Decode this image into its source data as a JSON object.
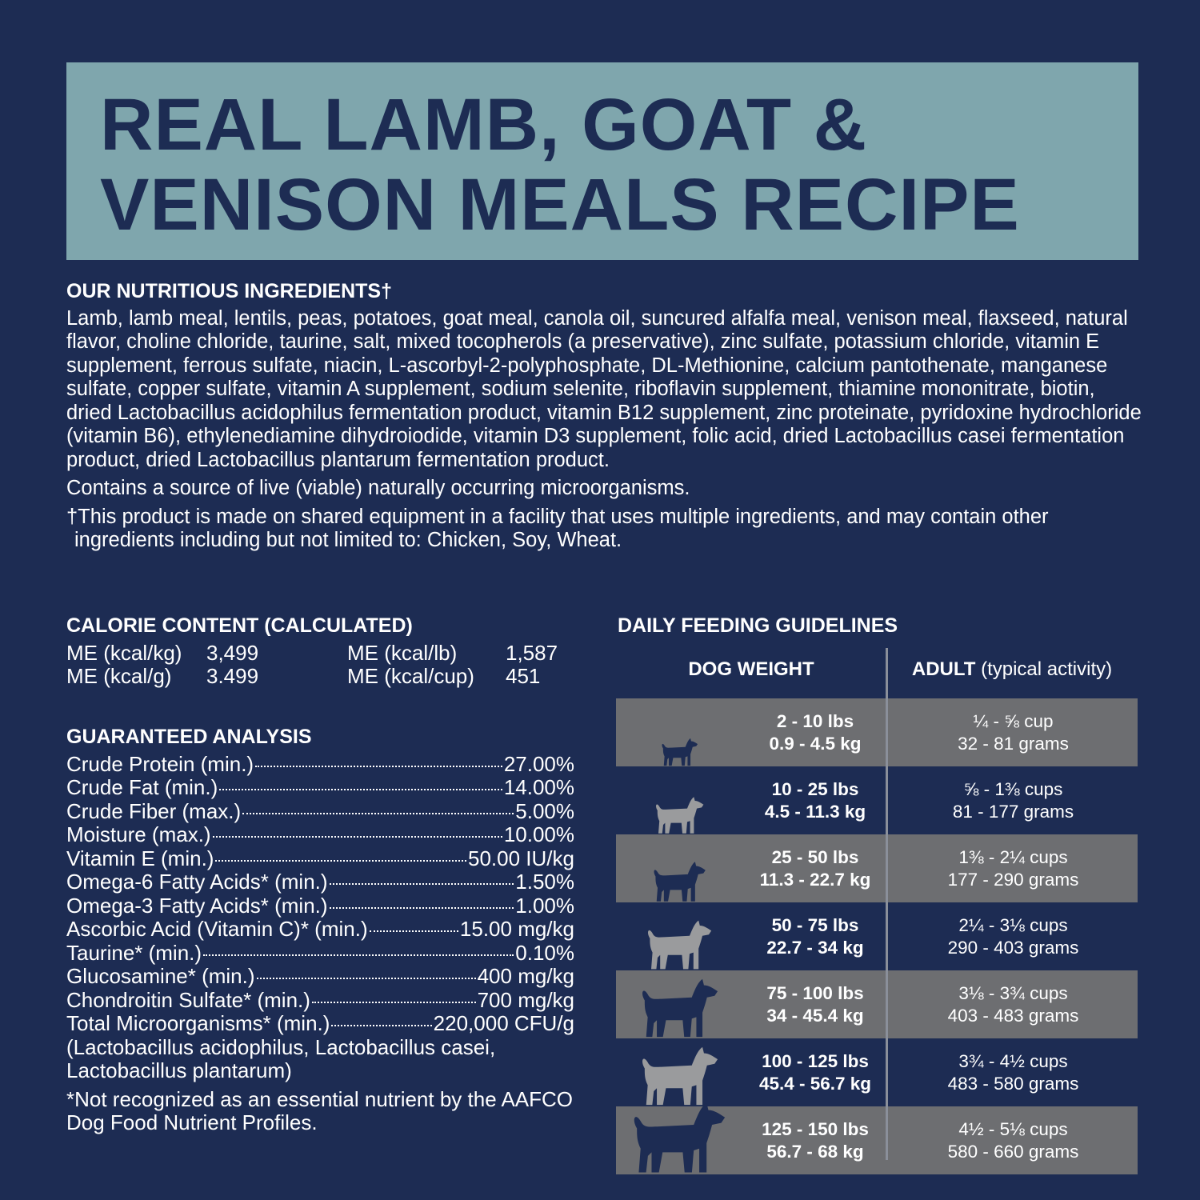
{
  "title": {
    "line1": "REAL LAMB, GOAT &",
    "line2": "VENISON MEALS RECIPE"
  },
  "colors": {
    "background": "#1d2c53",
    "title_band": "#7fa6ad",
    "row_gray": "#6d6e71"
  },
  "ingredients": {
    "heading": "OUR NUTRITIOUS INGREDIENTS†",
    "text": "Lamb, lamb meal, lentils, peas, potatoes, goat meal, canola oil, suncured alfalfa meal, venison meal, flaxseed, natural flavor, choline chloride, taurine, salt, mixed tocopherols (a preservative), zinc sulfate, potassium chloride, vitamin E supplement, ferrous sulfate, niacin, L-ascorbyl-2-polyphosphate, DL-Methionine, calcium pantothenate, manganese sulfate, copper sulfate, vitamin A supplement, sodium selenite, riboflavin supplement, thiamine mononitrate, biotin, dried Lactobacillus acidophilus fermentation product, vitamin B12 supplement, zinc proteinate, pyridoxine hydrochloride (vitamin B6), ethylenediamine dihydroiodide, vitamin D3 supplement, folic acid, dried Lactobacillus casei fermentation product, dried Lactobacillus plantarum fermentation product.",
    "probiotic_note": "Contains a source of live (viable) naturally occurring microorganisms.",
    "allergen_note": "†This product is made on shared equipment in a facility that uses multiple ingredients, and may contain other ingredients including but not limited to: Chicken, Soy, Wheat."
  },
  "calorie": {
    "heading": "CALORIE CONTENT (CALCULATED)",
    "items": [
      {
        "label": "ME (kcal/kg)",
        "value": "3,499"
      },
      {
        "label": "ME (kcal/lb)",
        "value": "1,587"
      },
      {
        "label": "ME (kcal/g)",
        "value": "3.499"
      },
      {
        "label": "ME (kcal/cup)",
        "value": "451"
      }
    ]
  },
  "analysis": {
    "heading": "GUARANTEED ANALYSIS",
    "rows": [
      {
        "label": "Crude Protein (min.)",
        "value": "27.00%"
      },
      {
        "label": "Crude Fat (min.)",
        "value": "14.00%"
      },
      {
        "label": "Crude Fiber (max.)",
        "value": "5.00%"
      },
      {
        "label": "Moisture (max.)",
        "value": "10.00%"
      },
      {
        "label": "Vitamin E (min.)",
        "value": "50.00 IU/kg"
      },
      {
        "label": "Omega-6 Fatty Acids* (min.)",
        "value": "1.50%"
      },
      {
        "label": "Omega-3 Fatty Acids* (min.)",
        "value": "1.00%"
      },
      {
        "label": "Ascorbic Acid (Vitamin C)* (min.)",
        "value": "15.00 mg/kg"
      },
      {
        "label": "Taurine* (min.)",
        "value": "0.10%"
      },
      {
        "label": "Glucosamine* (min.)",
        "value": "400 mg/kg"
      },
      {
        "label": "Chondroitin Sulfate* (min.)",
        "value": "700 mg/kg"
      },
      {
        "label": "Total Microorganisms* (min.)",
        "value": "220,000 CFU/g"
      }
    ],
    "organisms": "(Lactobacillus acidophilus, Lactobacillus casei, Lactobacillus plantarum)",
    "footnote": "*Not recognized as an essential nutrient by the AAFCO Dog Food Nutrient Profiles."
  },
  "feeding": {
    "heading": "DAILY FEEDING GUIDELINES",
    "col_weight": "DOG WEIGHT",
    "col_adult_bold": "ADULT",
    "col_adult_rest": " (typical activity)",
    "rows": [
      {
        "lbs": "2 - 10 lbs",
        "kg": "0.9 - 4.5 kg",
        "cups": "¼ - ⅝ cup",
        "grams": "32 - 81 grams",
        "icon": "small-dog-icon"
      },
      {
        "lbs": "10 - 25 lbs",
        "kg": "4.5 - 11.3 kg",
        "cups": "⅝ - 1⅜ cups",
        "grams": "81 - 177 grams",
        "icon": "bulldog-icon"
      },
      {
        "lbs": "25 - 50 lbs",
        "kg": "11.3 - 22.7 kg",
        "cups": "1⅜ - 2¼ cups",
        "grams": "177 - 290 grams",
        "icon": "medium-dog-icon"
      },
      {
        "lbs": "50 - 75 lbs",
        "kg": "22.7 - 34 kg",
        "cups": "2¼ - 3⅛ cups",
        "grams": "290 - 403 grams",
        "icon": "large-dog-icon"
      },
      {
        "lbs": "75 - 100 lbs",
        "kg": "34 - 45.4 kg",
        "cups": "3⅛ - 3¾ cups",
        "grams": "403 - 483 grams",
        "icon": "great-dane-icon"
      },
      {
        "lbs": "100 - 125 lbs",
        "kg": "45.4 - 56.7 kg",
        "cups": "3¾ - 4½ cups",
        "grams": "483 - 580 grams",
        "icon": "mastiff-icon"
      },
      {
        "lbs": "125 - 150 lbs",
        "kg": "56.7 - 68 kg",
        "cups": "4½ - 5⅛ cups",
        "grams": "580 - 660 grams",
        "icon": "giant-dog-icon"
      }
    ]
  }
}
